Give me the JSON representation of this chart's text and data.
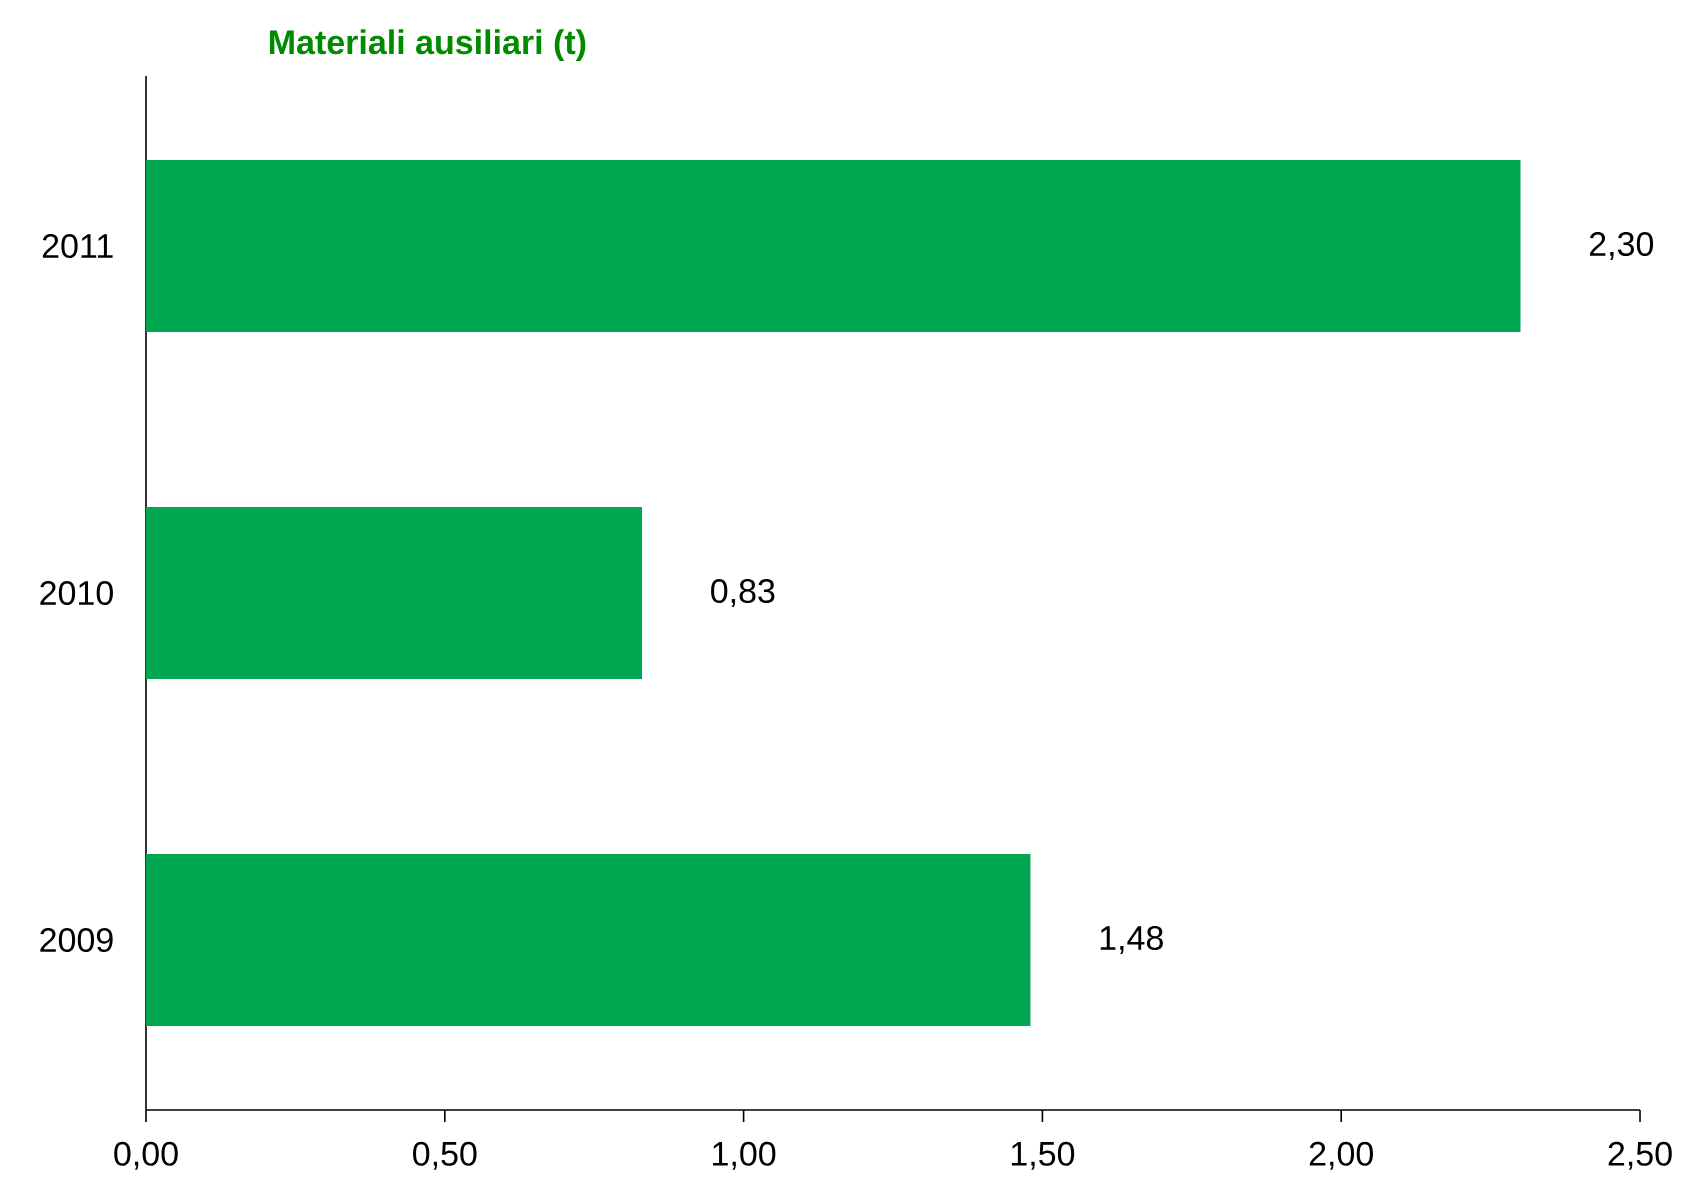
{
  "chart_data": {
    "type": "bar",
    "orientation": "horizontal",
    "title": "Materiali ausiliari  (t)",
    "categories": [
      "2011",
      "2010",
      "2009"
    ],
    "values": [
      2.3,
      0.83,
      1.48
    ],
    "value_labels": [
      "2,30",
      "0,83",
      "1,48"
    ],
    "color": "#00a650",
    "xlim": [
      0,
      2.5
    ],
    "xticks": [
      {
        "value": 0,
        "label": "0,00"
      },
      {
        "value": 0.5,
        "label": "0,50"
      },
      {
        "value": 1,
        "label": "1,00"
      },
      {
        "value": 1.5,
        "label": "1,50"
      },
      {
        "value": 2,
        "label": "2,00"
      },
      {
        "value": 2.5,
        "label": "2,50"
      }
    ],
    "grid": false
  }
}
